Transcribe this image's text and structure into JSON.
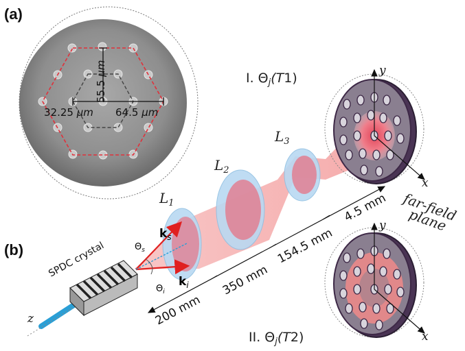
{
  "panel_a": {
    "label": "(a)",
    "dims": {
      "vertical_value": "55.5",
      "vertical_unit": "μm",
      "left_value": "32.25",
      "left_unit": "μm",
      "right_value": "64.5",
      "right_unit": "μm"
    }
  },
  "panel_b": {
    "label": "(b)",
    "crystal_label": "SPDC crystal",
    "z_axis": "z",
    "theta_s": "Θ",
    "theta_s_sub": "s",
    "theta_i": "Θ",
    "theta_i_sub": "i",
    "k_s": "k",
    "k_s_sub": "s",
    "k_i": "k",
    "k_i_sub": "i",
    "lenses": [
      {
        "name": "L",
        "sub": "1"
      },
      {
        "name": "L",
        "sub": "2"
      },
      {
        "name": "L",
        "sub": "3"
      }
    ],
    "distances": [
      "200 mm",
      "350 mm",
      "154.5 mm",
      "4.5 mm"
    ],
    "far_field": [
      "far-field",
      "plane"
    ],
    "plane1": {
      "prefix": "I. Θ",
      "sub": "j",
      "arg": "(T",
      "argsub": "1",
      "close": ")"
    },
    "plane2": {
      "prefix": "II. Θ",
      "sub": "j",
      "arg": "(T",
      "argsub": "2",
      "close": ")"
    },
    "axis_y": "y",
    "axis_x": "x"
  },
  "colors": {
    "beam": "#f08a8a",
    "lens": "#b9d9f2",
    "arrow": "#e02020",
    "pump": "#2a9fd6",
    "plate": "#3d2846",
    "hexagon_red": "#e0303a"
  }
}
